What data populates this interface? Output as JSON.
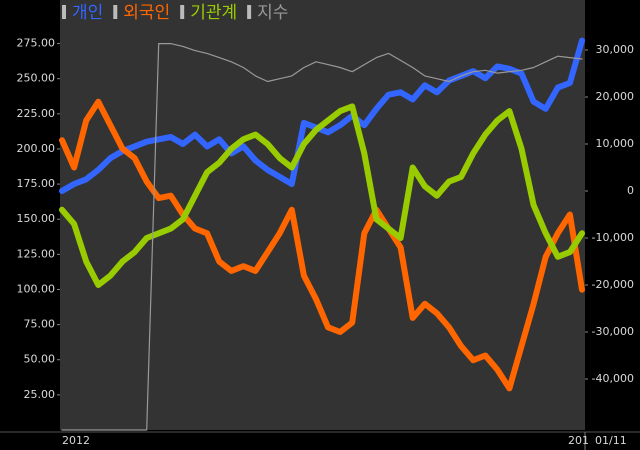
{
  "chart_data": {
    "type": "line",
    "categories": [
      "2012",
      null,
      null,
      null,
      null,
      null,
      null,
      null,
      null,
      null,
      null,
      null,
      null,
      null,
      null,
      null,
      null,
      null,
      null,
      null,
      null,
      null,
      null,
      null,
      null,
      null,
      null,
      null,
      null,
      null,
      null,
      null,
      null,
      null,
      null,
      null,
      null,
      null,
      null,
      null,
      null,
      null,
      null,
      "201"
    ],
    "date_label": "01/11",
    "series": [
      {
        "name": "개인",
        "color": "#3366ff",
        "axis": "y2",
        "values": [
          0,
          1500,
          2500,
          4500,
          7000,
          8500,
          9500,
          10500,
          11000,
          11500,
          10000,
          12000,
          9500,
          11000,
          8000,
          9500,
          6500,
          4500,
          3000,
          1500,
          14500,
          13500,
          12500,
          14000,
          16000,
          14000,
          17500,
          20500,
          21000,
          19500,
          22500,
          21000,
          23500,
          24500,
          25500,
          24000,
          26500,
          26000,
          25000,
          19000,
          17500,
          22000,
          23000,
          32000
        ]
      },
      {
        "name": "외국인",
        "color": "#ff6600",
        "axis": "y2",
        "values": [
          10800,
          5000,
          15000,
          19000,
          14000,
          9000,
          7000,
          2000,
          -1500,
          -1000,
          -5000,
          -8000,
          -9000,
          -15000,
          -17000,
          -16000,
          -17000,
          -13000,
          -9000,
          -4000,
          -18000,
          -23000,
          -29000,
          -30000,
          -28000,
          -9000,
          -4000,
          -8000,
          -12000,
          -27000,
          -24000,
          -26000,
          -29000,
          -33000,
          -36000,
          -35000,
          -38000,
          -42000,
          -33000,
          -24000,
          -14000,
          -9000,
          -5000,
          -21000
        ]
      },
      {
        "name": "기관계",
        "color": "#99cc00",
        "axis": "y2",
        "values": [
          -4000,
          -7000,
          -15000,
          -20000,
          -18000,
          -15000,
          -13000,
          -10000,
          -9000,
          -8000,
          -6000,
          -1000,
          4000,
          6000,
          9000,
          11000,
          12000,
          10000,
          7000,
          5000,
          10000,
          13000,
          15000,
          17000,
          18000,
          8000,
          -6000,
          -8000,
          -10000,
          5000,
          1000,
          -1000,
          2000,
          3000,
          8000,
          12000,
          15000,
          17000,
          9000,
          -3000,
          -9000,
          -14000,
          -13000,
          -9000
        ]
      },
      {
        "name": "지수",
        "color": "#999999",
        "values": [
          0,
          0,
          0,
          0,
          0,
          0,
          0,
          0,
          275,
          275,
          273,
          270,
          268,
          265,
          262,
          258,
          252,
          248,
          250,
          252,
          258,
          262,
          260,
          258,
          255,
          260,
          265,
          268,
          263,
          258,
          252,
          250,
          248,
          252,
          255,
          256,
          254,
          255,
          256,
          258,
          262,
          266,
          265,
          264
        ]
      }
    ],
    "ylim": [
      0,
      306
    ],
    "yticks": [
      {
        "value": 275,
        "label": "275.00"
      },
      {
        "value": 250,
        "label": "250.00"
      },
      {
        "value": 225,
        "label": "225.00"
      },
      {
        "value": 200,
        "label": "200.00"
      },
      {
        "value": 175,
        "label": "175.00"
      },
      {
        "value": 150,
        "label": "150.00"
      },
      {
        "value": 125,
        "label": "125.00"
      },
      {
        "value": 100,
        "label": "100.00"
      },
      {
        "value": 75,
        "label": "75.00"
      },
      {
        "value": 50,
        "label": "50.00"
      },
      {
        "value": 25,
        "label": "25.00"
      }
    ],
    "y2lim": [
      -50850,
      40640
    ],
    "y2ticks": [
      {
        "value": 30000,
        "label": "30,000"
      },
      {
        "value": 20000,
        "label": "20,000"
      },
      {
        "value": 10000,
        "label": "10,000"
      },
      0,
      {
        "value": -10000,
        "label": "-10,000"
      },
      {
        "value": -20000,
        "label": "-20,000"
      },
      {
        "value": -30000,
        "label": "-30,000"
      },
      {
        "value": -40000,
        "label": "-40,000"
      }
    ]
  }
}
